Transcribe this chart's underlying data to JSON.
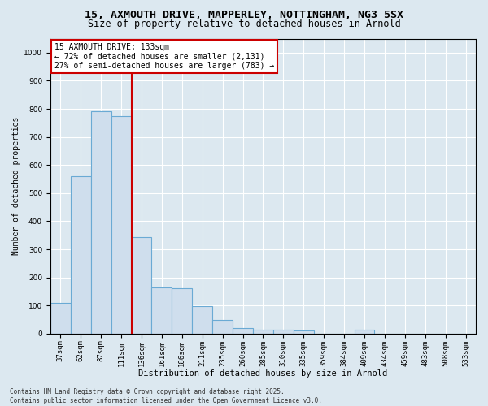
{
  "title_line1": "15, AXMOUTH DRIVE, MAPPERLEY, NOTTINGHAM, NG3 5SX",
  "title_line2": "Size of property relative to detached houses in Arnold",
  "xlabel": "Distribution of detached houses by size in Arnold",
  "ylabel": "Number of detached properties",
  "categories": [
    "37sqm",
    "62sqm",
    "87sqm",
    "111sqm",
    "136sqm",
    "161sqm",
    "186sqm",
    "211sqm",
    "235sqm",
    "260sqm",
    "285sqm",
    "310sqm",
    "335sqm",
    "359sqm",
    "384sqm",
    "409sqm",
    "434sqm",
    "459sqm",
    "483sqm",
    "508sqm",
    "533sqm"
  ],
  "values": [
    110,
    560,
    790,
    775,
    345,
    165,
    162,
    97,
    50,
    20,
    15,
    14,
    10,
    0,
    0,
    15,
    0,
    0,
    0,
    0,
    0
  ],
  "bar_color": "#cfdeed",
  "bar_edge_color": "#6aaad4",
  "vline_x": 3.5,
  "vline_color": "#cc0000",
  "annotation_text": "15 AXMOUTH DRIVE: 133sqm\n← 72% of detached houses are smaller (2,131)\n27% of semi-detached houses are larger (783) →",
  "annotation_box_facecolor": "#ffffff",
  "annotation_box_edgecolor": "#cc0000",
  "ylim": [
    0,
    1050
  ],
  "yticks": [
    0,
    100,
    200,
    300,
    400,
    500,
    600,
    700,
    800,
    900,
    1000
  ],
  "background_color": "#dce8f0",
  "plot_bg_color": "#dce8f0",
  "footer_line1": "Contains HM Land Registry data © Crown copyright and database right 2025.",
  "footer_line2": "Contains public sector information licensed under the Open Government Licence v3.0.",
  "title_fontsize": 9.5,
  "subtitle_fontsize": 8.5,
  "tick_fontsize": 6.5,
  "ylabel_fontsize": 7,
  "xlabel_fontsize": 7.5,
  "annotation_fontsize": 7,
  "footer_fontsize": 5.5
}
